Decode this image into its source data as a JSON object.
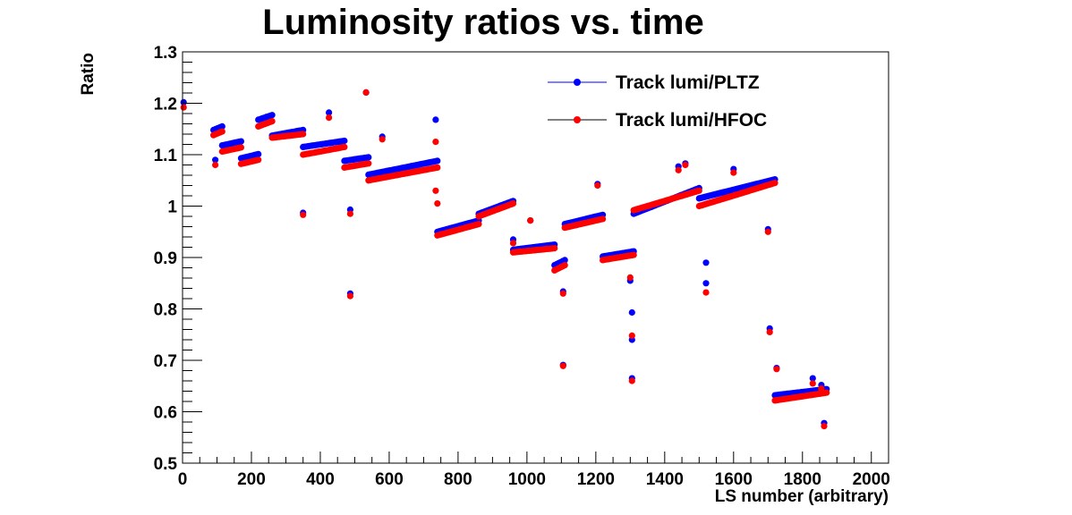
{
  "chart_data": {
    "type": "scatter",
    "title": "Luminosity ratios vs. time",
    "xlabel": "LS number (arbitrary)",
    "ylabel": "Ratio",
    "xlim": [
      0,
      2050
    ],
    "ylim": [
      0.5,
      1.3
    ],
    "x_ticks": [
      0,
      200,
      400,
      600,
      800,
      1000,
      1200,
      1400,
      1600,
      1800,
      2000
    ],
    "x_tick_labels": [
      "0",
      "200",
      "400",
      "600",
      "800",
      "1000",
      "1200",
      "1400",
      "1600",
      "1800",
      "2000"
    ],
    "y_ticks": [
      0.5,
      0.6,
      0.7,
      0.8,
      0.9,
      1.0,
      1.1,
      1.2,
      1.3
    ],
    "y_tick_labels": [
      "0.5",
      "0.6",
      "0.7",
      "0.8",
      "0.9",
      "1",
      "1.1",
      "1.2",
      "1.3"
    ],
    "legend_position": "top-right",
    "series": [
      {
        "name": "Track lumi/PLTZ",
        "color": "#0000ff",
        "segments": [
          [
            90,
            115,
            1.148,
            1.155,
            5
          ],
          [
            115,
            170,
            1.118,
            1.126,
            11
          ],
          [
            170,
            220,
            1.093,
            1.101,
            10
          ],
          [
            220,
            260,
            1.168,
            1.177,
            8
          ],
          [
            260,
            350,
            1.137,
            1.148,
            18
          ],
          [
            350,
            470,
            1.115,
            1.127,
            24
          ],
          [
            470,
            540,
            1.088,
            1.095,
            14
          ],
          [
            540,
            740,
            1.061,
            1.088,
            40
          ],
          [
            740,
            860,
            0.95,
            0.972,
            24
          ],
          [
            860,
            960,
            0.985,
            1.01,
            20
          ],
          [
            960,
            1080,
            0.915,
            0.925,
            24
          ],
          [
            1080,
            1110,
            0.885,
            0.895,
            6
          ],
          [
            1110,
            1220,
            0.965,
            0.983,
            22
          ],
          [
            1220,
            1310,
            0.902,
            0.912,
            18
          ],
          [
            1310,
            1500,
            0.985,
            1.035,
            38
          ],
          [
            1500,
            1720,
            1.015,
            1.052,
            44
          ],
          [
            1720,
            1870,
            0.632,
            0.644,
            30
          ]
        ],
        "points": [
          [
            3,
            1.202
          ],
          [
            95,
            1.09
          ],
          [
            350,
            0.987
          ],
          [
            425,
            1.182
          ],
          [
            487,
            0.83
          ],
          [
            487,
            0.993
          ],
          [
            533,
            1.221
          ],
          [
            580,
            1.135
          ],
          [
            735,
            1.168
          ],
          [
            960,
            0.935
          ],
          [
            1010,
            0.972
          ],
          [
            1105,
            0.834
          ],
          [
            1105,
            0.691
          ],
          [
            1205,
            1.043
          ],
          [
            1300,
            0.855
          ],
          [
            1305,
            0.793
          ],
          [
            1305,
            0.74
          ],
          [
            1305,
            0.665
          ],
          [
            1440,
            1.077
          ],
          [
            1460,
            1.083
          ],
          [
            1520,
            0.89
          ],
          [
            1520,
            0.85
          ],
          [
            1600,
            1.072
          ],
          [
            1700,
            0.955
          ],
          [
            1705,
            0.762
          ],
          [
            1725,
            0.685
          ],
          [
            1830,
            0.665
          ],
          [
            1855,
            0.652
          ],
          [
            1863,
            0.578
          ]
        ]
      },
      {
        "name": "Track lumi/HFOC",
        "color": "#ff0000",
        "segments": [
          [
            90,
            115,
            1.138,
            1.145,
            5
          ],
          [
            115,
            170,
            1.106,
            1.114,
            11
          ],
          [
            170,
            220,
            1.082,
            1.09,
            10
          ],
          [
            220,
            260,
            1.155,
            1.165,
            8
          ],
          [
            260,
            350,
            1.133,
            1.14,
            18
          ],
          [
            350,
            470,
            1.1,
            1.115,
            24
          ],
          [
            470,
            540,
            1.075,
            1.083,
            14
          ],
          [
            540,
            740,
            1.05,
            1.075,
            40
          ],
          [
            740,
            860,
            0.943,
            0.965,
            24
          ],
          [
            860,
            960,
            0.98,
            1.005,
            20
          ],
          [
            960,
            1080,
            0.91,
            0.918,
            24
          ],
          [
            1080,
            1110,
            0.875,
            0.885,
            6
          ],
          [
            1110,
            1220,
            0.958,
            0.975,
            22
          ],
          [
            1220,
            1310,
            0.895,
            0.905,
            18
          ],
          [
            1310,
            1500,
            0.992,
            1.03,
            38
          ],
          [
            1500,
            1720,
            1.0,
            1.045,
            44
          ],
          [
            1720,
            1870,
            0.622,
            0.637,
            30
          ]
        ],
        "points": [
          [
            3,
            1.192
          ],
          [
            95,
            1.08
          ],
          [
            350,
            0.983
          ],
          [
            425,
            1.172
          ],
          [
            487,
            0.825
          ],
          [
            487,
            0.985
          ],
          [
            533,
            1.221
          ],
          [
            580,
            1.13
          ],
          [
            735,
            1.125
          ],
          [
            735,
            1.03
          ],
          [
            740,
            1.005
          ],
          [
            960,
            0.928
          ],
          [
            1010,
            0.972
          ],
          [
            1105,
            0.83
          ],
          [
            1105,
            0.689
          ],
          [
            1205,
            1.04
          ],
          [
            1300,
            0.861
          ],
          [
            1305,
            0.748
          ],
          [
            1305,
            0.66
          ],
          [
            1440,
            1.07
          ],
          [
            1460,
            1.08
          ],
          [
            1520,
            0.832
          ],
          [
            1600,
            1.065
          ],
          [
            1700,
            0.95
          ],
          [
            1705,
            0.755
          ],
          [
            1725,
            0.683
          ],
          [
            1830,
            0.655
          ],
          [
            1855,
            0.645
          ],
          [
            1863,
            0.572
          ]
        ]
      }
    ]
  }
}
